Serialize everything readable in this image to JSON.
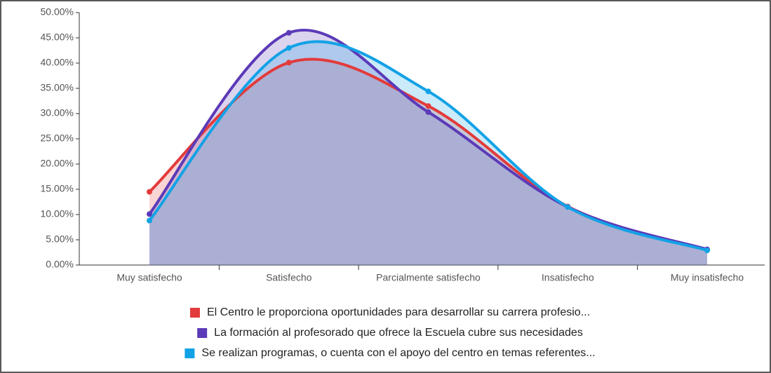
{
  "chart_data": {
    "type": "area",
    "categories": [
      "Muy satisfecho",
      "Satisfecho",
      "Parcialmente satisfecho",
      "Insatisfecho",
      "Muy insatisfecho"
    ],
    "series": [
      {
        "name": "El Centro le proporciona oportunidades para desarrollar su carrera profesio...",
        "color": "#e23b3b",
        "values": [
          14.5,
          40.1,
          31.5,
          11.6,
          3.0
        ]
      },
      {
        "name": "La formación al profesorado que ofrece la Escuela cubre sus necesidades",
        "color": "#5c3ab8",
        "values": [
          10.1,
          46.0,
          30.3,
          11.5,
          3.1
        ]
      },
      {
        "name": "Se realizan programas, o cuenta con el apoyo del centro en temas referentes...",
        "color": "#12a2e6",
        "values": [
          8.8,
          43.0,
          34.4,
          11.5,
          2.9
        ]
      }
    ],
    "ylim": [
      0,
      50
    ],
    "yticks": [
      {
        "value": 0,
        "label": "0.00%"
      },
      {
        "value": 5,
        "label": "5.00%"
      },
      {
        "value": 10,
        "label": "10.00%"
      },
      {
        "value": 15,
        "label": "15.00%"
      },
      {
        "value": 20,
        "label": "20.00%"
      },
      {
        "value": 25,
        "label": "25.00%"
      },
      {
        "value": 30,
        "label": "30.00%"
      },
      {
        "value": 35,
        "label": "35.00%"
      },
      {
        "value": 40,
        "label": "40.00%"
      },
      {
        "value": 45,
        "label": "45.00%"
      },
      {
        "value": 50,
        "label": "50.00%"
      }
    ],
    "smooth": true
  }
}
